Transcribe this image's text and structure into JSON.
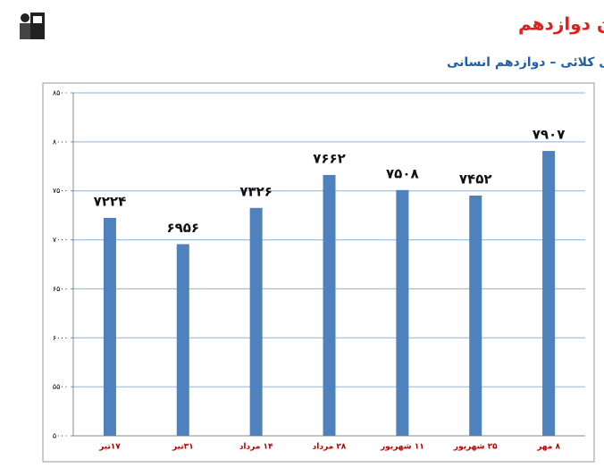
{
  "chart_data": {
    "type": "bar",
    "title": "شروع از تابستان : نمودار پیشرفت در تابستان دوازدهم",
    "subtitle": "عرفان نصراله پورمتی کلائی – دوازدهم انسانی",
    "categories": [
      "۱۷تیر",
      "۳۱تیر",
      "۱۴ مرداد",
      "۲۸ مرداد",
      "۱۱ شهریور",
      "۲۵ شهریور",
      "۸ مهر"
    ],
    "values": [
      7224,
      6956,
      7326,
      7662,
      7508,
      7452,
      7907
    ],
    "value_labels": [
      "۷۲۲۴",
      "۶۹۵۶",
      "۷۳۲۶",
      "۷۶۶۲",
      "۷۵۰۸",
      "۷۴۵۲",
      "۷۹۰۷"
    ],
    "color": "#4f81bd",
    "ylim": [
      5000,
      8500
    ],
    "yticks": [
      {
        "value": 5000,
        "label": "۵۰۰۰"
      },
      {
        "value": 5500,
        "label": "۵۵۰۰"
      },
      {
        "value": 6000,
        "label": "۶۰۰۰"
      },
      {
        "value": 6500,
        "label": "۶۵۰۰"
      },
      {
        "value": 7000,
        "label": "۷۰۰۰"
      },
      {
        "value": 7500,
        "label": "۷۵۰۰"
      },
      {
        "value": 8000,
        "label": "۸۰۰۰"
      },
      {
        "value": 8500,
        "label": "۸۵۰۰"
      }
    ],
    "grid": true
  }
}
